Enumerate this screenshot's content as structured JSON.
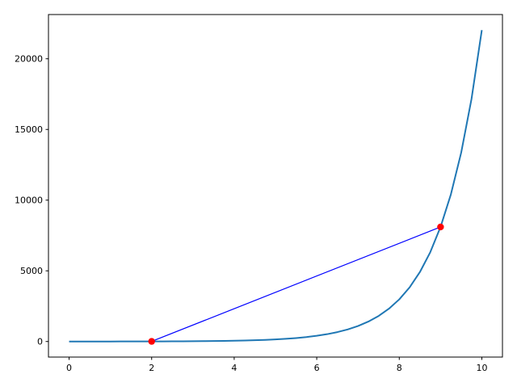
{
  "chart_data": {
    "type": "line",
    "title": "",
    "xlabel": "",
    "ylabel": "",
    "xlim": [
      -0.5,
      10.5
    ],
    "ylim": [
      -1101,
      23128
    ],
    "grid": false,
    "xticks": [
      "0",
      "2",
      "4",
      "6",
      "8",
      "10"
    ],
    "yticks": [
      "0",
      "5000",
      "10000",
      "15000",
      "20000"
    ],
    "series": [
      {
        "kind": "line",
        "color": "#1f77b4",
        "x": [
          0,
          0.25,
          0.5,
          0.75,
          1,
          1.25,
          1.5,
          1.75,
          2,
          2.25,
          2.5,
          2.75,
          3,
          3.25,
          3.5,
          3.75,
          4,
          4.25,
          4.5,
          4.75,
          5,
          5.25,
          5.5,
          5.75,
          6,
          6.25,
          6.5,
          6.75,
          7,
          7.25,
          7.5,
          7.75,
          8,
          8.25,
          8.5,
          8.75,
          9,
          9.25,
          9.5,
          9.75,
          10
        ],
        "y": [
          1,
          1.284,
          1.649,
          2.117,
          2.718,
          3.49,
          4.482,
          5.755,
          7.389,
          9.488,
          12.18,
          15.64,
          20.09,
          25.79,
          33.12,
          42.52,
          54.6,
          70.11,
          90.02,
          115.6,
          148.4,
          190.6,
          244.7,
          314.2,
          403.4,
          518,
          665.1,
          854.1,
          1096.6,
          1408.1,
          1808,
          2321.6,
          2981,
          3827.6,
          4914.8,
          6310.7,
          8103.1,
          10404.6,
          13359.7,
          17154.2,
          22026.5
        ]
      },
      {
        "kind": "line",
        "color": "#0000ff",
        "x": [
          2,
          9
        ],
        "y": [
          7.389,
          8103.1
        ]
      },
      {
        "kind": "scatter",
        "color": "#ff0000",
        "x": [
          2,
          9
        ],
        "y": [
          7.389,
          8103.1
        ]
      }
    ]
  }
}
